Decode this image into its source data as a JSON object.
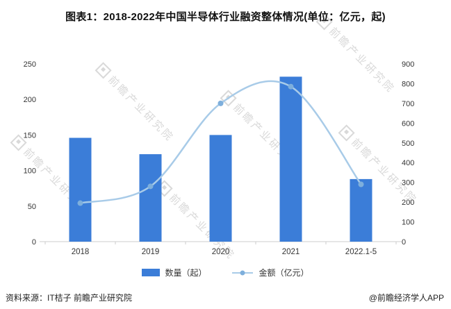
{
  "title": "图表1：2018-2022年中国半导体行业融资整体情况(单位：亿元，起)",
  "watermark": {
    "text": "前瞻产业研究院"
  },
  "footer": {
    "source": "资料来源：IT桔子 前瞻产业研究院",
    "credit": "@前瞻经济学人APP"
  },
  "colors": {
    "bar": "#3B7DD8",
    "line": "#A8CBE8",
    "dot": "#7EAFDC",
    "axis_text": "#333333",
    "axis_line": "#cccccc"
  },
  "chart_data": {
    "type": "bar+line",
    "title": "图表1：2018-2022年中国半导体行业融资整体情况(单位：亿元，起)",
    "categories": [
      "2018",
      "2019",
      "2020",
      "2021",
      "2022.1-5"
    ],
    "series": [
      {
        "name": "数量（起）",
        "type": "bar",
        "axis": "left",
        "values": [
          146,
          123,
          150,
          232,
          88
        ]
      },
      {
        "name": "金额（亿元）",
        "type": "line",
        "axis": "right",
        "values": [
          195,
          280,
          700,
          785,
          290
        ]
      }
    ],
    "left_axis": {
      "min": 0,
      "max": 250,
      "step": 50
    },
    "right_axis": {
      "min": 0,
      "max": 900,
      "step": 100
    },
    "grid": false,
    "legend_position": "bottom"
  }
}
